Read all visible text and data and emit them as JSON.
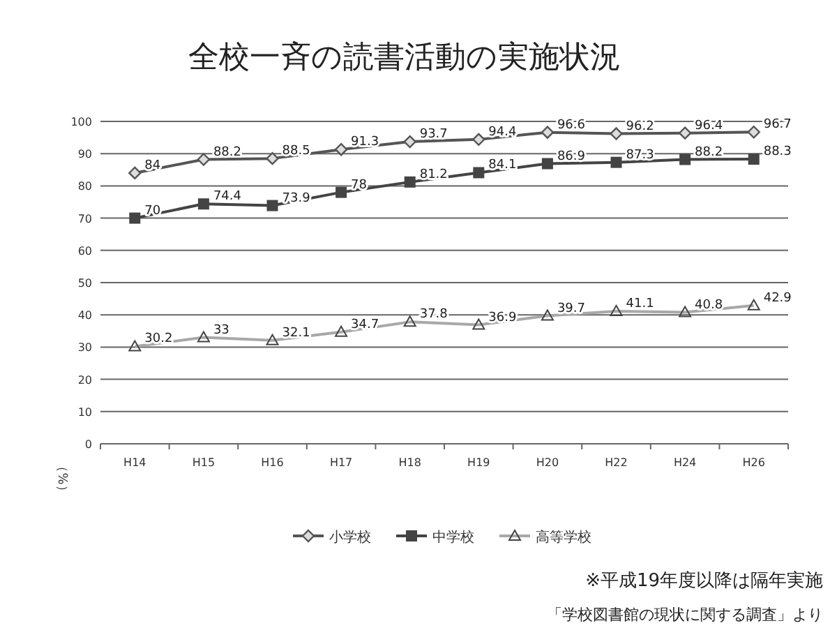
{
  "chart_data": {
    "type": "line",
    "title": "全校一斉の読書活動の実施状況",
    "ylabel": "（%）",
    "categories": [
      "H14",
      "H15",
      "H16",
      "H17",
      "H18",
      "H19",
      "H20",
      "H22",
      "H24",
      "H26"
    ],
    "series": [
      {
        "name": "小学校",
        "color": "#555555",
        "marker": "diamond",
        "values": [
          84,
          88.2,
          88.5,
          91.3,
          93.7,
          94.4,
          96.6,
          96.2,
          96.4,
          96.7
        ]
      },
      {
        "name": "中学校",
        "color": "#444444",
        "marker": "square",
        "values": [
          70,
          74.4,
          73.9,
          78,
          81.2,
          84.1,
          86.9,
          87.3,
          88.2,
          88.3
        ]
      },
      {
        "name": "高等学校",
        "color": "#a8a8a8",
        "marker": "triangle",
        "values": [
          30.2,
          33,
          32.1,
          34.7,
          37.8,
          36.9,
          39.7,
          41.1,
          40.8,
          42.9
        ]
      }
    ],
    "ylim": [
      0,
      100
    ],
    "yticks": [
      0,
      10,
      20,
      30,
      40,
      50,
      60,
      70,
      80,
      90,
      100
    ],
    "grid": "y",
    "legend": "bottom",
    "data_labels": true,
    "annotations": [
      "※平成19年度以降は隔年実施",
      "「学校図書館の現状に関する調査」より"
    ]
  }
}
